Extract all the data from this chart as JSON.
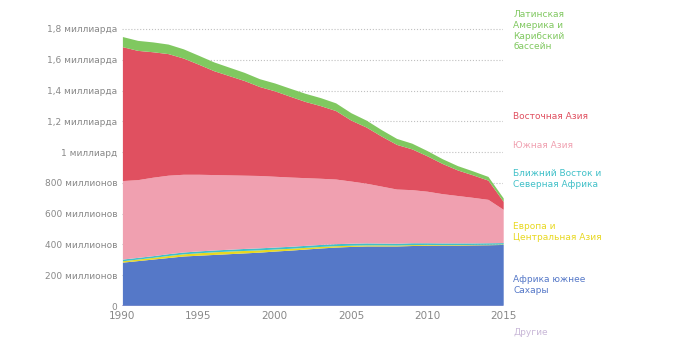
{
  "years": [
    1990,
    1991,
    1992,
    1993,
    1994,
    1995,
    1996,
    1997,
    1998,
    1999,
    2000,
    2001,
    2002,
    2003,
    2004,
    2005,
    2006,
    2007,
    2008,
    2009,
    2010,
    2011,
    2012,
    2013,
    2014,
    2015
  ],
  "regions": [
    {
      "name": "Другие",
      "color": "#c9b8d8",
      "data": [
        5,
        5,
        5,
        5,
        5,
        5,
        5,
        5,
        5,
        5,
        5,
        5,
        5,
        5,
        5,
        5,
        5,
        5,
        5,
        5,
        5,
        5,
        5,
        5,
        5,
        5
      ]
    },
    {
      "name": "Африка южнее Сахары",
      "color": "#5578c8",
      "data": [
        280,
        290,
        300,
        310,
        320,
        325,
        330,
        335,
        340,
        345,
        352,
        358,
        365,
        372,
        378,
        382,
        385,
        385,
        385,
        388,
        390,
        390,
        390,
        392,
        393,
        395
      ]
    },
    {
      "name": "Европа и Центральная Азия",
      "color": "#e8d820",
      "data": [
        9,
        10,
        11,
        13,
        14,
        16,
        17,
        17,
        16,
        15,
        13,
        12,
        11,
        10,
        9,
        8,
        7,
        7,
        6,
        6,
        5,
        4,
        4,
        3,
        3,
        3
      ]
    },
    {
      "name": "Ближний Восток и Северная Африка",
      "color": "#40c0c8",
      "data": [
        11,
        11,
        11,
        12,
        12,
        12,
        12,
        12,
        13,
        13,
        13,
        13,
        13,
        13,
        13,
        13,
        13,
        12,
        12,
        12,
        11,
        11,
        11,
        10,
        10,
        9
      ]
    },
    {
      "name": "Южная Азия",
      "color": "#f0a0b0",
      "data": [
        510,
        505,
        510,
        510,
        505,
        498,
        490,
        483,
        476,
        470,
        460,
        450,
        440,
        430,
        420,
        404,
        388,
        370,
        352,
        345,
        335,
        320,
        308,
        296,
        282,
        216
      ]
    },
    {
      "name": "Восточная Азия",
      "color": "#e05060",
      "data": [
        870,
        840,
        815,
        790,
        755,
        715,
        675,
        645,
        615,
        578,
        555,
        525,
        495,
        472,
        445,
        396,
        365,
        325,
        290,
        265,
        230,
        196,
        166,
        146,
        125,
        52
      ]
    },
    {
      "name": "Латинская Америка и Карибский бассейн",
      "color": "#80c860",
      "data": [
        66,
        65,
        64,
        62,
        60,
        58,
        57,
        55,
        53,
        51,
        51,
        52,
        53,
        52,
        50,
        48,
        45,
        42,
        39,
        37,
        34,
        31,
        28,
        26,
        24,
        22
      ]
    }
  ],
  "ytick_positions": [
    0,
    200,
    400,
    600,
    800,
    1000,
    1200,
    1400,
    1600,
    1800
  ],
  "ytick_labels": [
    "0",
    "200 миллионов",
    "400 миллионов",
    "600 миллионов",
    "800 миллионов",
    "1 миллиард",
    "1,2 миллиарда",
    "1,4 миллиарда",
    "1,6 миллиарда",
    "1,8 миллиарда"
  ],
  "xticks": [
    1990,
    1995,
    2000,
    2005,
    2010,
    2015
  ],
  "background_color": "#ffffff",
  "grid_color": "#c0c0c0",
  "legend_entries": [
    {
      "label": "Латинская\nАмерика и\nКарибский\nбассейн",
      "color": "#80c860"
    },
    {
      "label": "Восточная Азия",
      "color": "#e05060"
    },
    {
      "label": "Южная Азия",
      "color": "#f0a0b0"
    },
    {
      "label": "Ближний Восток и\nСеверная Африка",
      "color": "#40c0c8"
    },
    {
      "label": "Европа и\nЦентральная Азия",
      "color": "#e8d820"
    },
    {
      "label": "Африка южнее\nСахары",
      "color": "#5578c8"
    },
    {
      "label": "Другие",
      "color": "#c9b8d8"
    }
  ]
}
